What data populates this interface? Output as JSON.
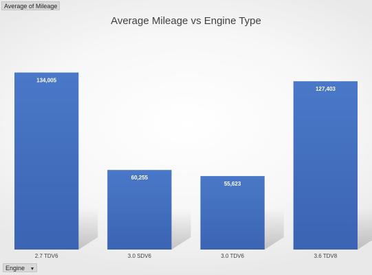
{
  "pivot": {
    "value_field": "Average of Mileage",
    "axis_field": "Engine"
  },
  "chart_data": {
    "type": "bar",
    "title": "Average Mileage vs Engine Type",
    "categories": [
      "2.7 TDV6",
      "3.0 SDV6",
      "3.0 TDV6",
      "3.6 TDV8"
    ],
    "values": [
      134005,
      60255,
      55623,
      127403
    ],
    "data_labels": [
      "134,005",
      "60,255",
      "55,623",
      "127,403"
    ],
    "xlabel": "",
    "ylabel": "",
    "ylim": [
      0,
      140000
    ],
    "grid": false,
    "legend": "none",
    "bar_color": "#4472c4"
  }
}
